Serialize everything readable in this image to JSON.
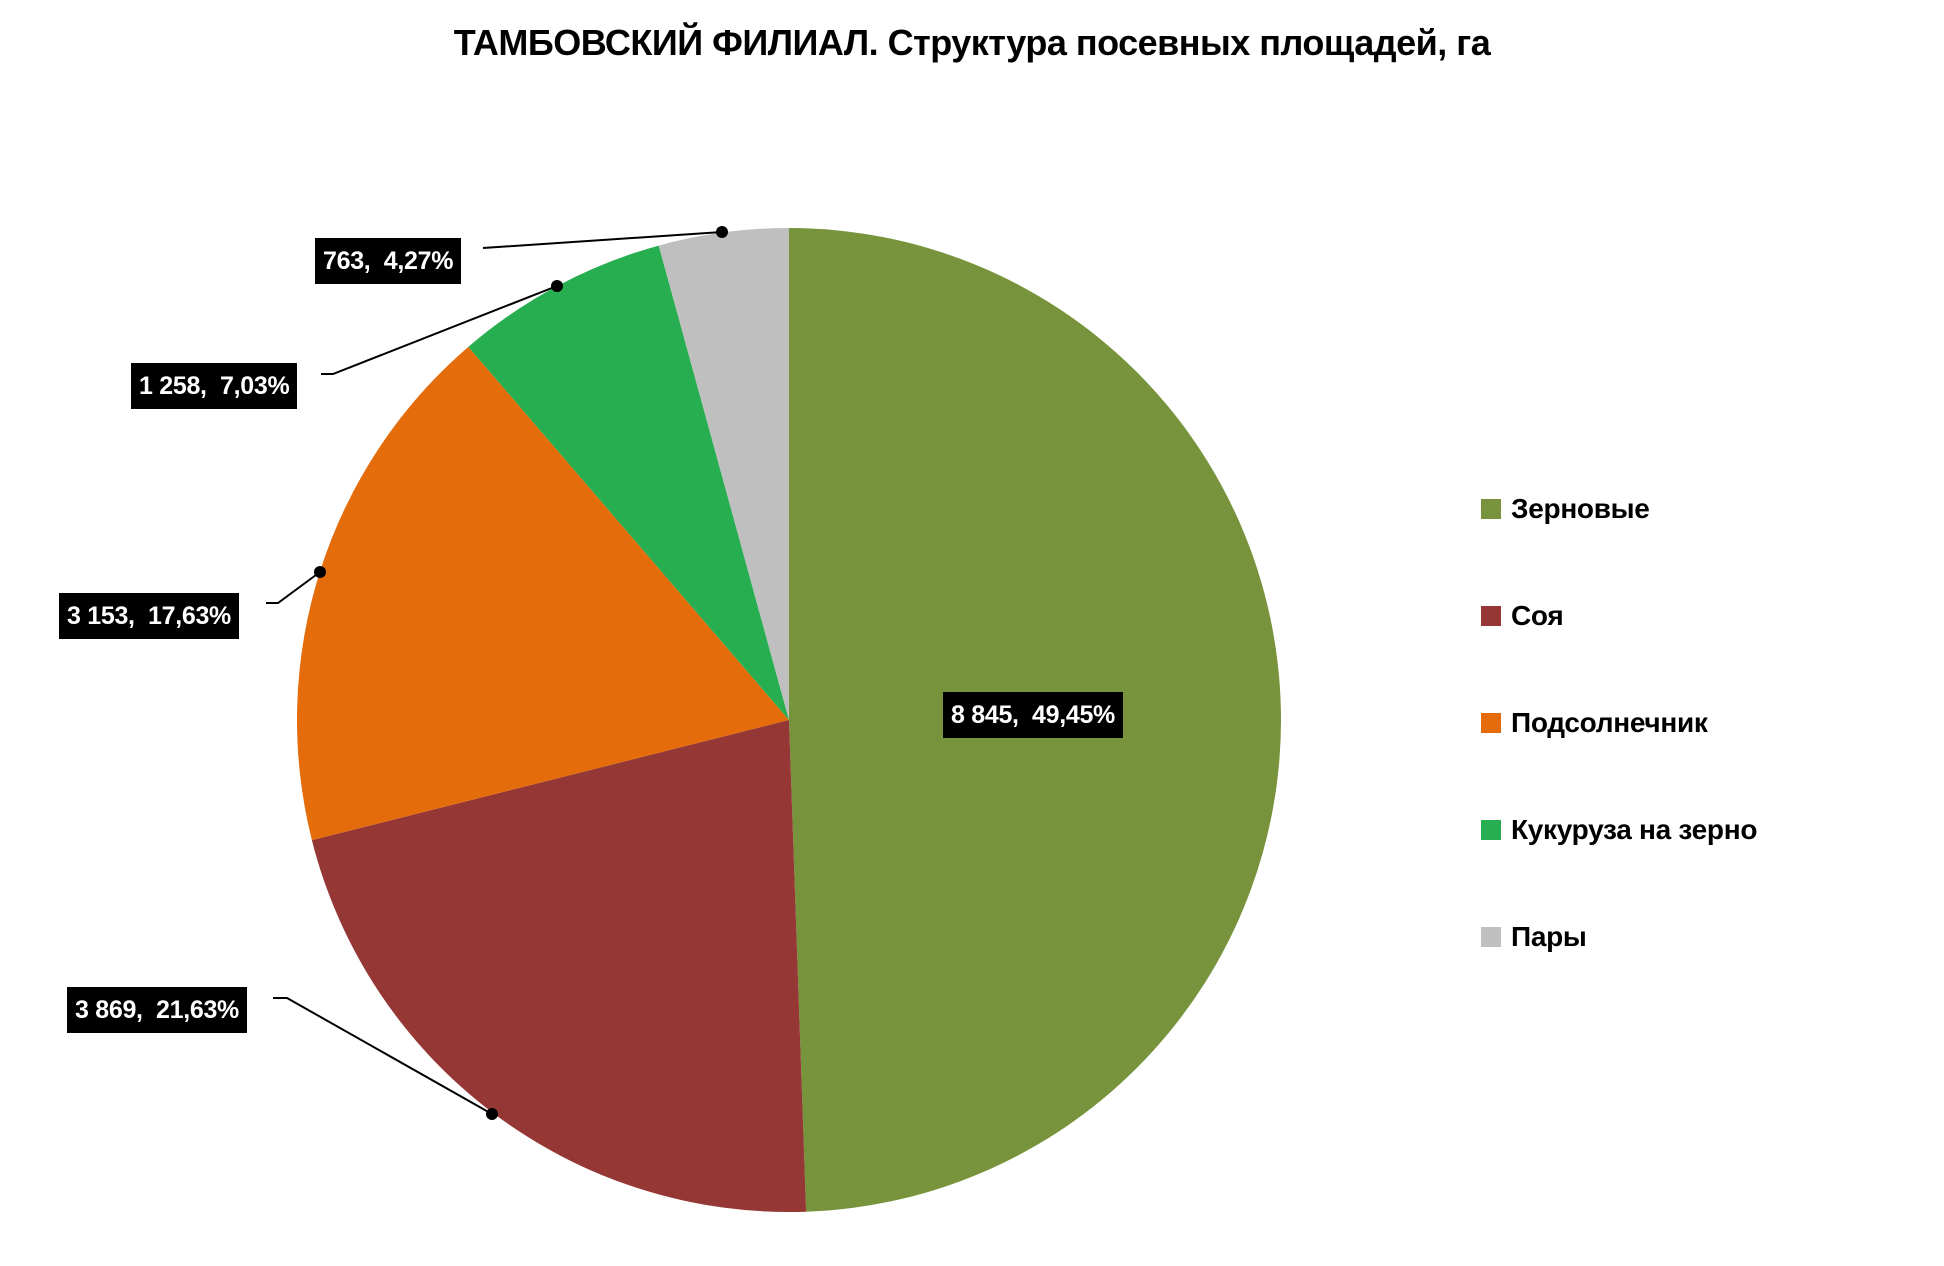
{
  "chart": {
    "title": "ТАМБОВСКИЙ ФИЛИАЛ. Структура посевных площадей, га",
    "unit": "га"
  },
  "slices": [
    {
      "name": "Зерновые",
      "value": 8845,
      "value_label": "8 845",
      "percent": 49.45,
      "label": "8 845,  49,45%",
      "color": "#77933C"
    },
    {
      "name": "Соя",
      "value": 3869,
      "value_label": "3 869",
      "percent": 21.63,
      "label": "3 869,  21,63%",
      "color": "#953735"
    },
    {
      "name": "Подсолнечник",
      "value": 3153,
      "value_label": "3 153",
      "percent": 17.63,
      "label": "3 153,  17,63%",
      "color": "#E46C0A"
    },
    {
      "name": "Кукуруза на зерно",
      "value": 1258,
      "value_label": "1 258",
      "percent": 7.03,
      "label": "1 258,  7,03%",
      "color": "#27AE50"
    },
    {
      "name": "Пары",
      "value": 763,
      "value_label": "763",
      "percent": 4.27,
      "label": "763,  4,27%",
      "color": "#BFBFBF"
    }
  ],
  "legend": {
    "position": "right",
    "items": [
      {
        "label": "Зерновые",
        "color": "#77933C"
      },
      {
        "label": "Соя",
        "color": "#953735"
      },
      {
        "label": "Подсолнечник",
        "color": "#E46C0A"
      },
      {
        "label": "Кукуруза на зерно",
        "color": "#27AE50"
      },
      {
        "label": "Пары",
        "color": "#BFBFBF"
      }
    ]
  },
  "chart_data": {
    "type": "pie",
    "title": "ТАМБОВСКИЙ ФИЛИАЛ. Структура посевных площадей, га",
    "categories": [
      "Зерновые",
      "Соя",
      "Подсолнечник",
      "Кукуруза на зерно",
      "Пары"
    ],
    "values": [
      8845,
      3869,
      3153,
      1258,
      763
    ],
    "percentages": [
      49.45,
      21.63,
      17.63,
      7.03,
      4.27
    ],
    "data_labels": [
      "8 845,  49,45%",
      "3 869,  21,63%",
      "3 153,  17,63%",
      "1 258,  7,03%",
      "763,  4,27%"
    ],
    "colors": [
      "#77933C",
      "#953735",
      "#E46C0A",
      "#27AE50",
      "#BFBFBF"
    ],
    "start_angle": "12 o'clock, clockwise",
    "legend_position": "right",
    "xlabel": "",
    "ylabel": ""
  }
}
